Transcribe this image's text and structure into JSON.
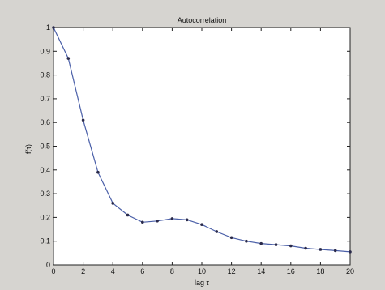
{
  "chart_data": {
    "type": "line",
    "title": "Autocorrelation",
    "xlabel": "lag τ",
    "ylabel": "f(τ)",
    "xlim": [
      0,
      20
    ],
    "ylim": [
      0,
      1
    ],
    "x_ticks": [
      "0",
      "2",
      "4",
      "6",
      "8",
      "10",
      "12",
      "14",
      "16",
      "18",
      "20"
    ],
    "y_ticks": [
      "0",
      "0.1",
      "0.2",
      "0.3",
      "0.4",
      "0.5",
      "0.6",
      "0.7",
      "0.8",
      "0.9",
      "1"
    ],
    "grid": false,
    "series": [
      {
        "x": [
          0,
          1,
          2,
          3,
          4,
          5,
          6,
          7,
          8,
          9,
          10,
          11,
          12,
          13,
          14,
          15,
          16,
          17,
          18,
          19,
          20
        ],
        "values": [
          1.0,
          0.87,
          0.61,
          0.39,
          0.26,
          0.21,
          0.18,
          0.185,
          0.195,
          0.19,
          0.17,
          0.14,
          0.115,
          0.1,
          0.09,
          0.085,
          0.08,
          0.07,
          0.065,
          0.06,
          0.055
        ]
      }
    ],
    "colors": {
      "line": "#4a5fa8",
      "marker": "#2a2a4a",
      "axes_bg": "#ffffff",
      "figure_bg": "#d6d4d0"
    }
  }
}
